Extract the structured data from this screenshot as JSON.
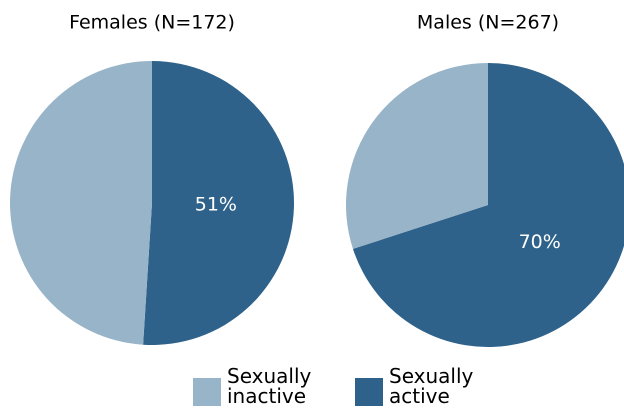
{
  "chart_data": [
    {
      "type": "pie",
      "title": "Females (N=172)",
      "categories": [
        "Sexually inactive",
        "Sexually active"
      ],
      "values": [
        49,
        51
      ],
      "value_labels": [
        null,
        "51%"
      ],
      "colors": [
        "#98b4c8",
        "#2e628a"
      ]
    },
    {
      "type": "pie",
      "title": "Males (N=267)",
      "categories": [
        "Sexually inactive",
        "Sexually active"
      ],
      "values": [
        30,
        70
      ],
      "value_labels": [
        null,
        "70%"
      ],
      "colors": [
        "#98b4c8",
        "#2e628a"
      ]
    }
  ]
}
